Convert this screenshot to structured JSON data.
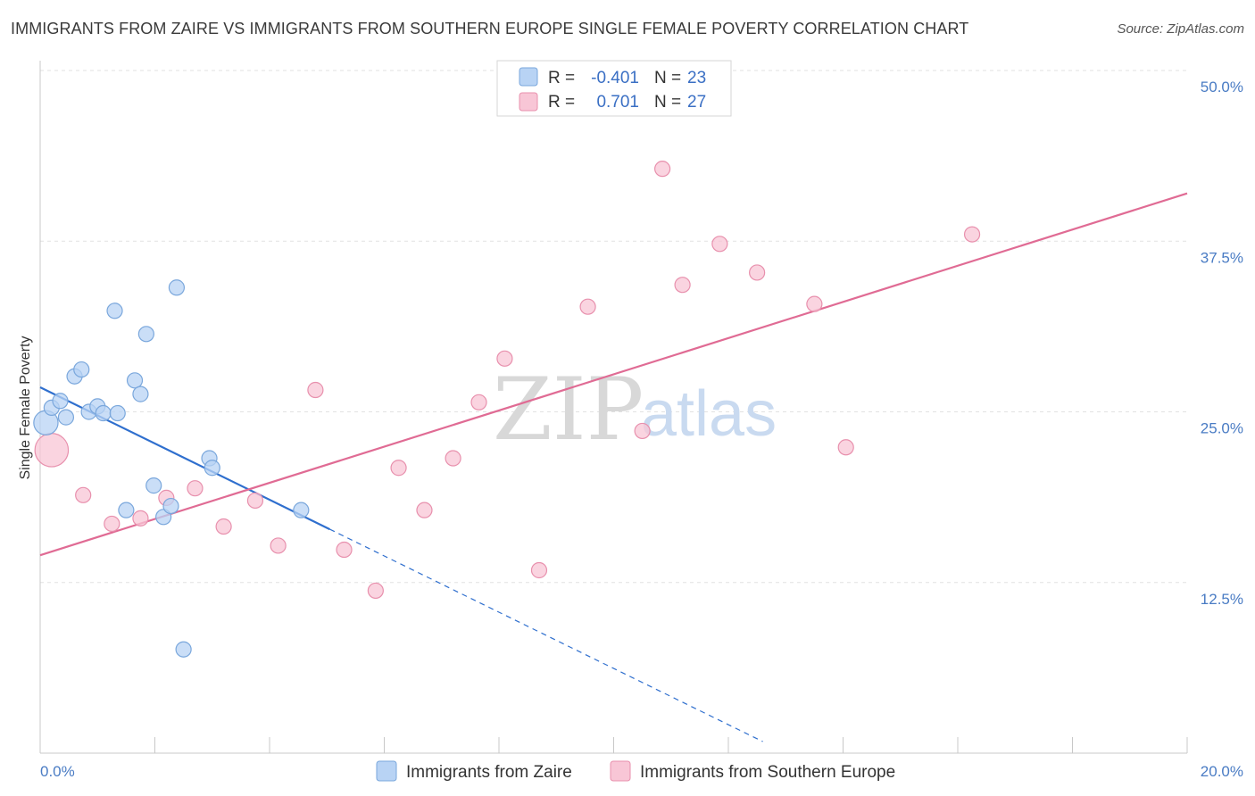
{
  "title": "IMMIGRANTS FROM ZAIRE VS IMMIGRANTS FROM SOUTHERN EUROPE SINGLE FEMALE POVERTY CORRELATION CHART",
  "source": "Source: ZipAtlas.com",
  "watermark": {
    "zip": "ZIP",
    "atlas": "atlas"
  },
  "colors": {
    "blue_fill": "#b8d3f4",
    "blue_stroke": "#7aa7dc",
    "blue_line": "#2f6fce",
    "pink_fill": "#f8c6d6",
    "pink_stroke": "#e890ad",
    "pink_line": "#e06b94",
    "grid": "#e2e2e2",
    "axis_text": "#4a7cc4"
  },
  "chart_data": {
    "type": "scatter",
    "title": "IMMIGRANTS FROM ZAIRE VS IMMIGRANTS FROM SOUTHERN EUROPE SINGLE FEMALE POVERTY CORRELATION CHART",
    "xlabel": "",
    "ylabel": "Single Female Poverty",
    "xlim": [
      0,
      20
    ],
    "ylim": [
      0,
      50
    ],
    "x_tick_labels": [
      "0.0%",
      "20.0%"
    ],
    "y_ticks": [
      12.5,
      25.0,
      37.5,
      50.0
    ],
    "y_tick_labels": [
      "12.5%",
      "25.0%",
      "37.5%",
      "50.0%"
    ],
    "grid": true,
    "legend_position": "top-center",
    "legend": [
      {
        "r_label": "R = ",
        "r_value": "-0.401",
        "n_label": "N = ",
        "n_value": "23"
      },
      {
        "r_label": "R = ",
        "r_value": "0.701",
        "n_label": "N = ",
        "n_value": "27"
      }
    ],
    "series": [
      {
        "name": "Immigrants from Zaire",
        "color": "blue",
        "points": [
          [
            0.1,
            24.2,
            1.6
          ],
          [
            0.2,
            25.3,
            1
          ],
          [
            0.35,
            25.8,
            1
          ],
          [
            0.45,
            24.6,
            1
          ],
          [
            0.6,
            27.6,
            1
          ],
          [
            0.72,
            28.1,
            1
          ],
          [
            0.85,
            25.0,
            1
          ],
          [
            1.0,
            25.4,
            1
          ],
          [
            1.1,
            24.9,
            1
          ],
          [
            1.35,
            24.9,
            1
          ],
          [
            1.3,
            32.4,
            1
          ],
          [
            1.5,
            17.8,
            1
          ],
          [
            1.65,
            27.3,
            1
          ],
          [
            1.75,
            26.3,
            1
          ],
          [
            1.85,
            30.7,
            1
          ],
          [
            1.98,
            19.6,
            1
          ],
          [
            2.15,
            17.3,
            1
          ],
          [
            2.28,
            18.1,
            1
          ],
          [
            2.38,
            34.1,
            1
          ],
          [
            2.5,
            7.6,
            1
          ],
          [
            2.95,
            21.6,
            1
          ],
          [
            3.0,
            20.9,
            1
          ],
          [
            4.55,
            17.8,
            1
          ]
        ],
        "trend": {
          "x0": 0,
          "y0": 26.8,
          "x1": 5.05,
          "y1": 16.4,
          "dashed_to_x": 12.6
        }
      },
      {
        "name": "Immigrants from Southern Europe",
        "color": "pink",
        "points": [
          [
            0.2,
            22.2,
            2.2
          ],
          [
            0.75,
            18.9,
            1
          ],
          [
            1.25,
            16.8,
            1
          ],
          [
            1.75,
            17.2,
            1
          ],
          [
            2.2,
            18.7,
            1
          ],
          [
            2.7,
            19.4,
            1
          ],
          [
            3.2,
            16.6,
            1
          ],
          [
            3.75,
            18.5,
            1
          ],
          [
            4.15,
            15.2,
            1
          ],
          [
            4.8,
            26.6,
            1
          ],
          [
            5.3,
            14.9,
            1
          ],
          [
            5.85,
            11.9,
            1
          ],
          [
            6.25,
            20.9,
            1
          ],
          [
            6.7,
            17.8,
            1
          ],
          [
            7.2,
            21.6,
            1
          ],
          [
            7.65,
            25.7,
            1
          ],
          [
            8.1,
            28.9,
            1
          ],
          [
            8.7,
            13.4,
            1
          ],
          [
            9.55,
            32.7,
            1
          ],
          [
            10.5,
            23.6,
            1
          ],
          [
            10.85,
            42.8,
            1
          ],
          [
            11.2,
            34.3,
            1
          ],
          [
            11.85,
            37.3,
            1
          ],
          [
            12.5,
            35.2,
            1
          ],
          [
            13.5,
            32.9,
            1
          ],
          [
            14.05,
            22.4,
            1
          ],
          [
            16.25,
            38.0,
            1
          ]
        ],
        "trend": {
          "x0": 0,
          "y0": 14.5,
          "x1": 20,
          "y1": 41.0
        }
      }
    ]
  },
  "bottom_legend": [
    {
      "label": "Immigrants from Zaire",
      "color": "blue"
    },
    {
      "label": "Immigrants from Southern Europe",
      "color": "pink"
    }
  ]
}
